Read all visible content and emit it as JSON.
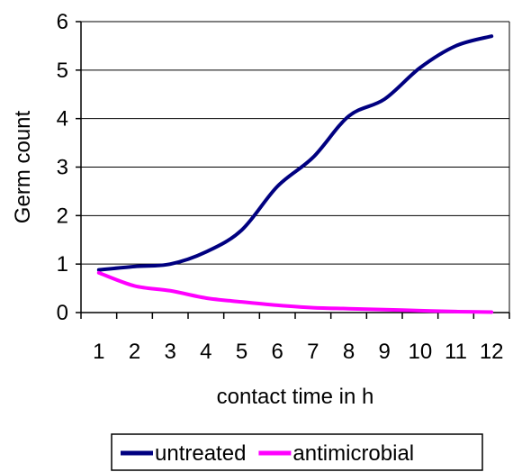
{
  "chart_data": {
    "type": "line",
    "title": "",
    "xlabel": "contact time in h",
    "ylabel": "Germ count",
    "categories": [
      "1",
      "2",
      "3",
      "4",
      "5",
      "6",
      "7",
      "8",
      "9",
      "10",
      "11",
      "12"
    ],
    "ylim": [
      0,
      6
    ],
    "yticks": [
      "0",
      "1",
      "2",
      "3",
      "4",
      "5",
      "6"
    ],
    "grid": "horizontal",
    "legend_position": "bottom",
    "series": [
      {
        "name": "untreated",
        "color": "#000080",
        "values": [
          0.88,
          0.95,
          1.0,
          1.25,
          1.7,
          2.6,
          3.2,
          4.05,
          4.4,
          5.05,
          5.5,
          5.7
        ]
      },
      {
        "name": "antimicrobial",
        "color": "#FF00FF",
        "values": [
          0.82,
          0.55,
          0.45,
          0.3,
          0.22,
          0.15,
          0.1,
          0.08,
          0.06,
          0.04,
          0.02,
          0.01
        ]
      }
    ]
  }
}
